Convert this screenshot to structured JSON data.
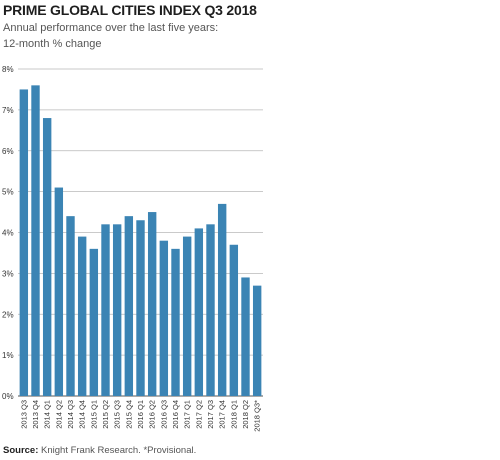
{
  "chart_data": {
    "type": "bar",
    "title": "PRIME GLOBAL CITIES INDEX Q3 2018",
    "subtitle_lines": [
      "Annual performance over the last five years:",
      "12-month % change"
    ],
    "categories": [
      "2013 Q3",
      "2013 Q4",
      "2014 Q1",
      "2014 Q2",
      "2014 Q3",
      "2014 Q4",
      "2015 Q1",
      "2015 Q2",
      "2015 Q3",
      "2015 Q4",
      "2016 Q1",
      "2016 Q2",
      "2016 Q3",
      "2016 Q4",
      "2017 Q1",
      "2017 Q2",
      "2017 Q3",
      "2017 Q4",
      "2018 Q1",
      "2018 Q2",
      "2018 Q3*"
    ],
    "values": [
      7.5,
      7.6,
      6.8,
      5.1,
      4.4,
      3.9,
      3.6,
      4.2,
      4.2,
      4.4,
      4.3,
      4.5,
      3.8,
      3.6,
      3.9,
      4.1,
      4.2,
      4.7,
      3.7,
      2.9,
      2.7
    ],
    "ylim": [
      0,
      8
    ],
    "yticks": [
      "0%",
      "1%",
      "2%",
      "3%",
      "4%",
      "5%",
      "6%",
      "7%",
      "8%"
    ],
    "grid": true,
    "bar_color": "#3b84b4"
  },
  "source": {
    "label": "Source:",
    "text": "Knight Frank Research. *Provisional."
  }
}
